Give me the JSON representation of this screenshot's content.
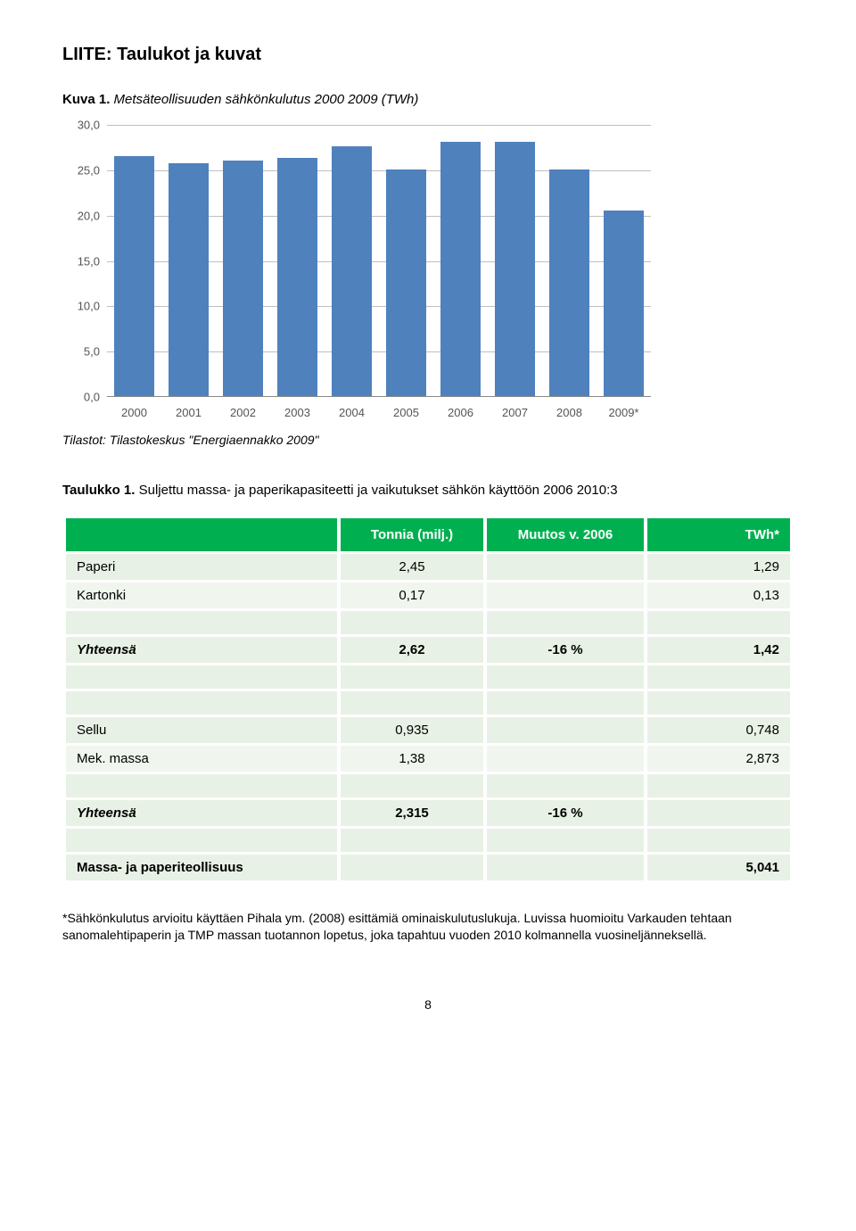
{
  "heading": "LIITE: Taulukot ja kuvat",
  "fig": {
    "label": "Kuva 1.",
    "desc": "Metsäteollisuuden sähkönkulutus 2000 2009 (TWh)",
    "categories": [
      "2000",
      "2001",
      "2002",
      "2003",
      "2004",
      "2005",
      "2006",
      "2007",
      "2008",
      "2009*"
    ],
    "values": [
      26.5,
      25.7,
      26.0,
      26.3,
      27.5,
      25.0,
      28.0,
      28.0,
      25.0,
      20.5
    ],
    "ymax": 30,
    "ytick_step": 5,
    "ylabels": [
      "0,0",
      "5,0",
      "10,0",
      "15,0",
      "20,0",
      "25,0",
      "30,0"
    ],
    "bar_color": "#4f81bd",
    "grid_color": "#bfbfbf",
    "source": "Tilastot: Tilastokeskus \"Energiaennakko 2009\""
  },
  "table": {
    "label": "Taulukko 1.",
    "desc": "Suljettu massa- ja paperikapasiteetti ja vaikutukset sähkön käyttöön 2006 2010:3",
    "headers": [
      "",
      "Tonnia (milj.)",
      "Muutos v. 2006",
      "TWh*"
    ],
    "rows_a": [
      {
        "name": "Paperi",
        "t": "2,45",
        "m": "",
        "tw": "1,29"
      },
      {
        "name": "Kartonki",
        "t": "0,17",
        "m": "",
        "tw": "0,13"
      }
    ],
    "sum_a": {
      "name": "Yhteensä",
      "t": "2,62",
      "m": "-16 %",
      "tw": "1,42"
    },
    "rows_b": [
      {
        "name": "Sellu",
        "t": "0,935",
        "m": "",
        "tw": "0,748"
      },
      {
        "name": "Mek. massa",
        "t": "1,38",
        "m": "",
        "tw": "2,873"
      }
    ],
    "sum_b": {
      "name": "Yhteensä",
      "t": "2,315",
      "m": "-16 %",
      "tw": ""
    },
    "final": {
      "name": "Massa- ja paperiteollisuus",
      "t": "",
      "m": "",
      "tw": "5,041"
    }
  },
  "footnote": "*Sähkönkulutus arvioitu käyttäen Pihala ym. (2008) esittämiä ominaiskulutuslukuja. Luvissa huomioitu Varkauden tehtaan sanomalehtipaperin ja TMP massan tuotannon lopetus, joka tapahtuu vuoden 2010 kolmannella vuosineljänneksellä.",
  "pagenum": "8"
}
